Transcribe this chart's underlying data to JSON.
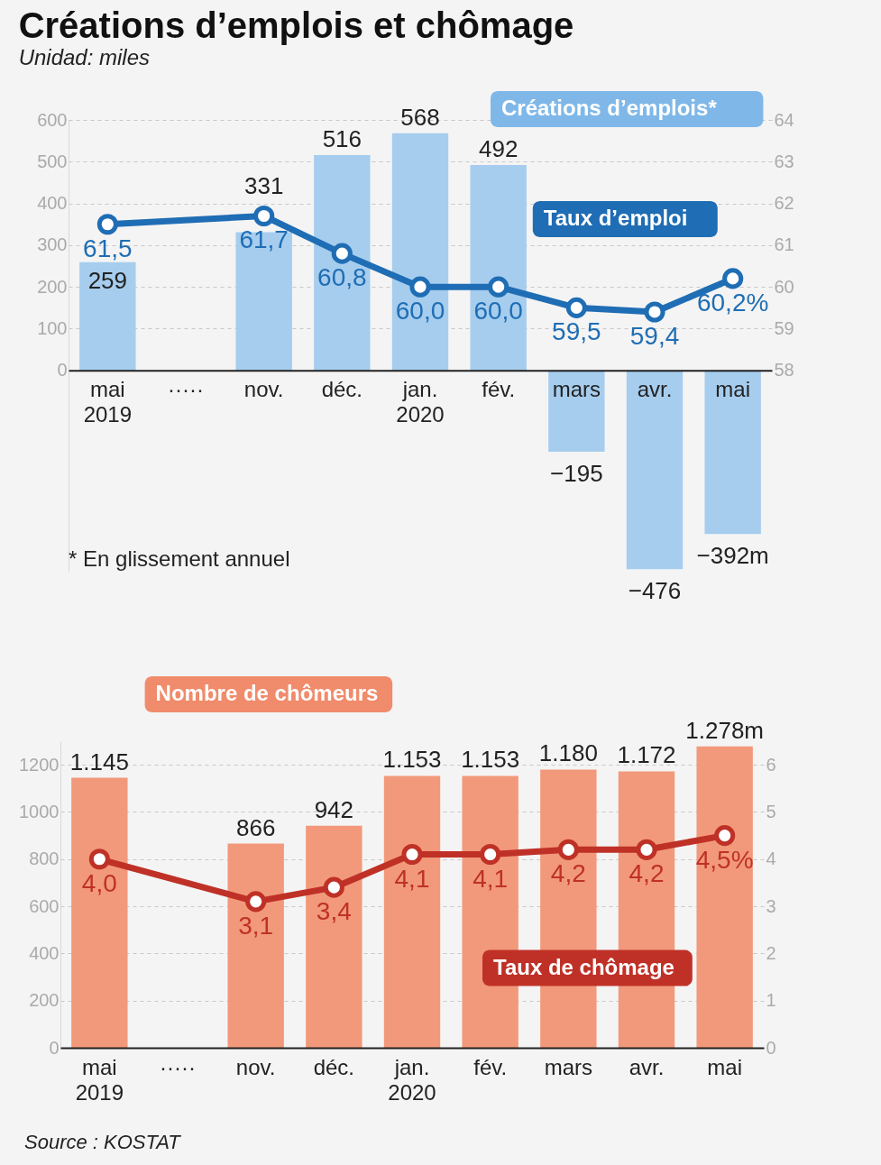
{
  "chart_data": [
    {
      "type": "bar",
      "title": "Créations d’emplois et chômage",
      "subtitle": "Unidad: miles",
      "categories": [
        "mai 2019",
        "·····",
        "nov.",
        "déc.",
        "jan. 2020",
        "fév.",
        "mars",
        "avr.",
        "mai"
      ],
      "series": [
        {
          "name": "Créations d’emplois*",
          "type": "bar",
          "color": "#a6cdee",
          "values": [
            259,
            null,
            331,
            516,
            568,
            492,
            -195,
            -476,
            -392
          ],
          "value_labels": [
            "259",
            null,
            "331",
            "516",
            "568",
            "492",
            "−195",
            "−476",
            "−392m"
          ]
        },
        {
          "name": "Taux d’emploi",
          "type": "line",
          "axis": "y2",
          "color": "#1f6db4",
          "values": [
            61.5,
            null,
            61.7,
            60.8,
            60.0,
            60.0,
            59.5,
            59.4,
            60.2
          ],
          "value_labels": [
            "61,5",
            null,
            "61,7",
            "60,8",
            "60,0",
            "60,0",
            "59,5",
            "59,4",
            "60,2%"
          ]
        }
      ],
      "ylim": [
        -480,
        600
      ],
      "yticks": [
        0,
        100,
        200,
        300,
        400,
        500,
        600
      ],
      "y2lim": [
        53.2,
        64
      ],
      "y2ticks": [
        58,
        59,
        60,
        61,
        62,
        63,
        64
      ],
      "grid": "y",
      "marker": "circle",
      "annotations": [
        "* En glissement annuel"
      ]
    },
    {
      "type": "bar",
      "categories": [
        "mai 2019",
        "·····",
        "nov.",
        "déc.",
        "jan. 2020",
        "fév.",
        "mars",
        "avr.",
        "mai"
      ],
      "series": [
        {
          "name": "Nombre de chômeurs",
          "type": "bar",
          "color": "#f2997b",
          "values": [
            1145,
            null,
            866,
            942,
            1153,
            1153,
            1180,
            1172,
            1278
          ],
          "value_labels": [
            "1.145",
            null,
            "866",
            "942",
            "1.153",
            "1.153",
            "1.180",
            "1.172",
            "1.278m"
          ]
        },
        {
          "name": "Taux de chômage",
          "type": "line",
          "axis": "y2",
          "color": "#bf3127",
          "values": [
            4.0,
            null,
            3.1,
            3.4,
            4.1,
            4.1,
            4.2,
            4.2,
            4.5
          ],
          "value_labels": [
            "4,0",
            null,
            "3,1",
            "3,4",
            "4,1",
            "4,1",
            "4,2",
            "4,2",
            "4,5%"
          ]
        }
      ],
      "ylim": [
        0,
        1300
      ],
      "yticks": [
        0,
        200,
        400,
        600,
        800,
        1000,
        1200
      ],
      "y2lim": [
        0,
        6.5
      ],
      "y2ticks": [
        0,
        1,
        2,
        3,
        4,
        5,
        6
      ],
      "grid": "y",
      "marker": "circle",
      "annotations": [
        "Source : KOSTAT"
      ]
    }
  ]
}
